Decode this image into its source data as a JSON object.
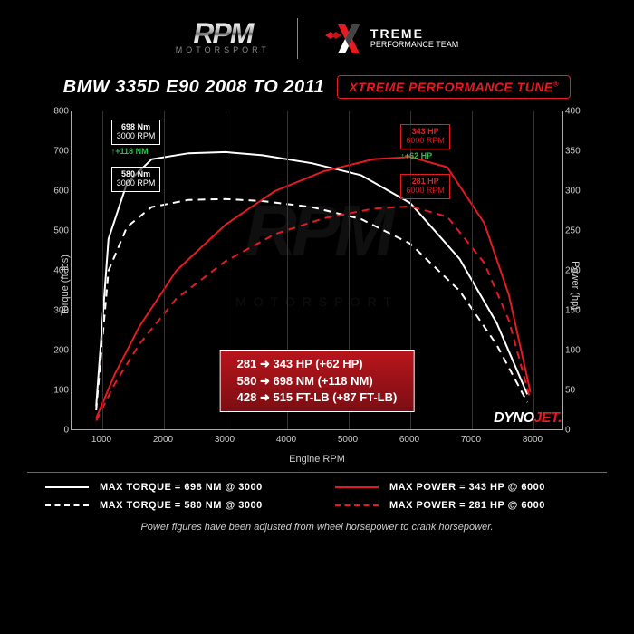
{
  "logo": {
    "main": "RPM",
    "sub": "MOTORSPORT"
  },
  "xtreme_logo": {
    "big": "TREME",
    "line2": "PERFORMANCE TEAM"
  },
  "title": "BMW 335D E90 2008 TO 2011",
  "badge": "XTREME PERFORMANCE TUNE",
  "chart": {
    "type": "line",
    "background_color": "#000000",
    "grid_color": "#333333",
    "axis_color": "#aaaaaa",
    "text_color": "#cccccc",
    "x_label": "Engine RPM",
    "y1_label": "Torque (ft-lbs)",
    "y2_label": "Power (hp)",
    "xlim": [
      500,
      8500
    ],
    "y1_lim": [
      0,
      800
    ],
    "y1_tick_step": 100,
    "y2_lim": [
      0,
      400
    ],
    "y2_tick_step": 50,
    "x_ticks": [
      1000,
      2000,
      3000,
      4000,
      5000,
      6000,
      7000,
      8000
    ],
    "series": {
      "torque_tuned": {
        "label": "MAX TORQUE = 698 NM @ 3000",
        "color": "#ffffff",
        "dash": "solid",
        "width": 2,
        "points": [
          [
            900,
            60
          ],
          [
            1100,
            480
          ],
          [
            1400,
            620
          ],
          [
            1800,
            680
          ],
          [
            2400,
            695
          ],
          [
            3000,
            698
          ],
          [
            3600,
            690
          ],
          [
            4400,
            670
          ],
          [
            5200,
            640
          ],
          [
            6000,
            570
          ],
          [
            6800,
            430
          ],
          [
            7400,
            270
          ],
          [
            7900,
            90
          ]
        ]
      },
      "torque_stock": {
        "label": "MAX TORQUE = 580 NM @ 3000",
        "color": "#ffffff",
        "dash": "dashed",
        "width": 2,
        "points": [
          [
            900,
            50
          ],
          [
            1100,
            400
          ],
          [
            1400,
            510
          ],
          [
            1800,
            560
          ],
          [
            2400,
            578
          ],
          [
            3000,
            580
          ],
          [
            3600,
            575
          ],
          [
            4400,
            560
          ],
          [
            5200,
            530
          ],
          [
            6000,
            468
          ],
          [
            6800,
            350
          ],
          [
            7400,
            215
          ],
          [
            7900,
            70
          ]
        ]
      },
      "power_tuned": {
        "label": "MAX POWER = 343 HP @ 6000",
        "color": "#e41b23",
        "dash": "solid",
        "width": 2,
        "points": [
          [
            900,
            15
          ],
          [
            1200,
            70
          ],
          [
            1600,
            130
          ],
          [
            2200,
            200
          ],
          [
            3000,
            258
          ],
          [
            3800,
            300
          ],
          [
            4600,
            325
          ],
          [
            5400,
            340
          ],
          [
            6000,
            343
          ],
          [
            6600,
            330
          ],
          [
            7200,
            260
          ],
          [
            7600,
            170
          ],
          [
            7950,
            48
          ]
        ]
      },
      "power_stock": {
        "label": "MAX POWER = 281 HP @ 6000",
        "color": "#e41b23",
        "dash": "dashed",
        "width": 2,
        "points": [
          [
            900,
            12
          ],
          [
            1200,
            58
          ],
          [
            1600,
            108
          ],
          [
            2200,
            165
          ],
          [
            3000,
            212
          ],
          [
            3800,
            246
          ],
          [
            4600,
            266
          ],
          [
            5400,
            278
          ],
          [
            6000,
            281
          ],
          [
            6600,
            268
          ],
          [
            7200,
            210
          ],
          [
            7600,
            138
          ],
          [
            7950,
            38
          ]
        ]
      }
    },
    "callouts": {
      "t_tuned": {
        "l1": "698 Nm",
        "l2": "3000 RPM",
        "gain": "↑+118 NM",
        "x": 1600,
        "y_torque": 698
      },
      "t_stock": {
        "l1": "580 Nm",
        "l2": "3000 RPM",
        "x": 1600,
        "y_torque": 580
      },
      "p_tuned": {
        "l1": "343 HP",
        "l2": "6000 RPM",
        "gain": "↑+62 HP",
        "x": 6300,
        "y_power": 343
      },
      "p_stock": {
        "l1": "281 HP",
        "l2": "6000 RPM",
        "x": 6300,
        "y_power": 281
      }
    }
  },
  "gains": {
    "hp": "281 ➜ 343 HP (+62 HP)",
    "nm": "580 ➜ 698 NM (+118 NM)",
    "ftlb": "428 ➜ 515 FT-LB (+87 FT-LB)"
  },
  "dynojet": {
    "part1": "DYNO",
    "part2": "JET."
  },
  "legend": {
    "torque_tuned": "MAX TORQUE  = 698 NM @  3000",
    "torque_stock": "MAX TORQUE = 580 NM @  3000",
    "power_tuned": "MAX POWER = 343 HP @ 6000",
    "power_stock": "MAX POWER = 281 HP @ 6000"
  },
  "footnote": "Power figures have been adjusted from wheel horsepower to crank horsepower.",
  "colors": {
    "red": "#e41b23",
    "white": "#ffffff",
    "green": "#2bc24a"
  }
}
